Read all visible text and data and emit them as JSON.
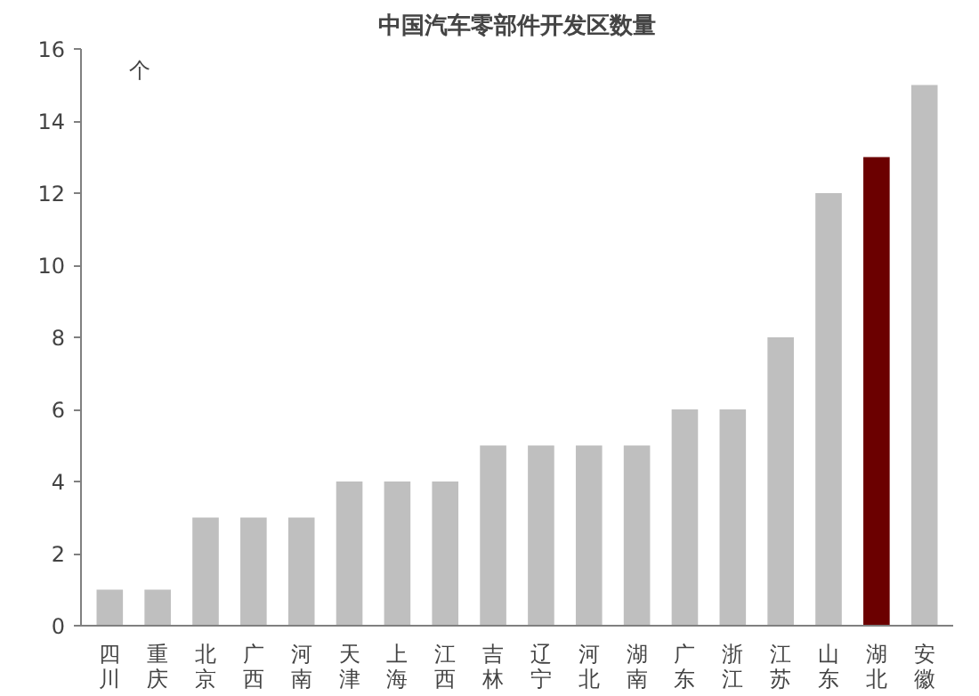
{
  "chart_data": {
    "type": "bar",
    "title": "中国汽车零部件开发区数量",
    "ylabel": "个",
    "categories": [
      "四川",
      "重庆",
      "北京",
      "广西",
      "河南",
      "天津",
      "上海",
      "江西",
      "吉林",
      "辽宁",
      "河北",
      "湖南",
      "广东",
      "浙江",
      "江苏",
      "山东",
      "湖北",
      "安徽"
    ],
    "values": [
      1,
      1,
      3,
      3,
      3,
      4,
      4,
      4,
      5,
      5,
      5,
      5,
      6,
      6,
      8,
      12,
      13,
      15
    ],
    "colors": [
      "#bfbfbf",
      "#bfbfbf",
      "#bfbfbf",
      "#bfbfbf",
      "#bfbfbf",
      "#bfbfbf",
      "#bfbfbf",
      "#bfbfbf",
      "#bfbfbf",
      "#bfbfbf",
      "#bfbfbf",
      "#bfbfbf",
      "#bfbfbf",
      "#bfbfbf",
      "#bfbfbf",
      "#bfbfbf",
      "#6b0000",
      "#bfbfbf"
    ],
    "ylim": [
      0,
      16
    ],
    "yticks": [
      0,
      2,
      4,
      6,
      8,
      10,
      12,
      14,
      16
    ],
    "grid": false
  }
}
